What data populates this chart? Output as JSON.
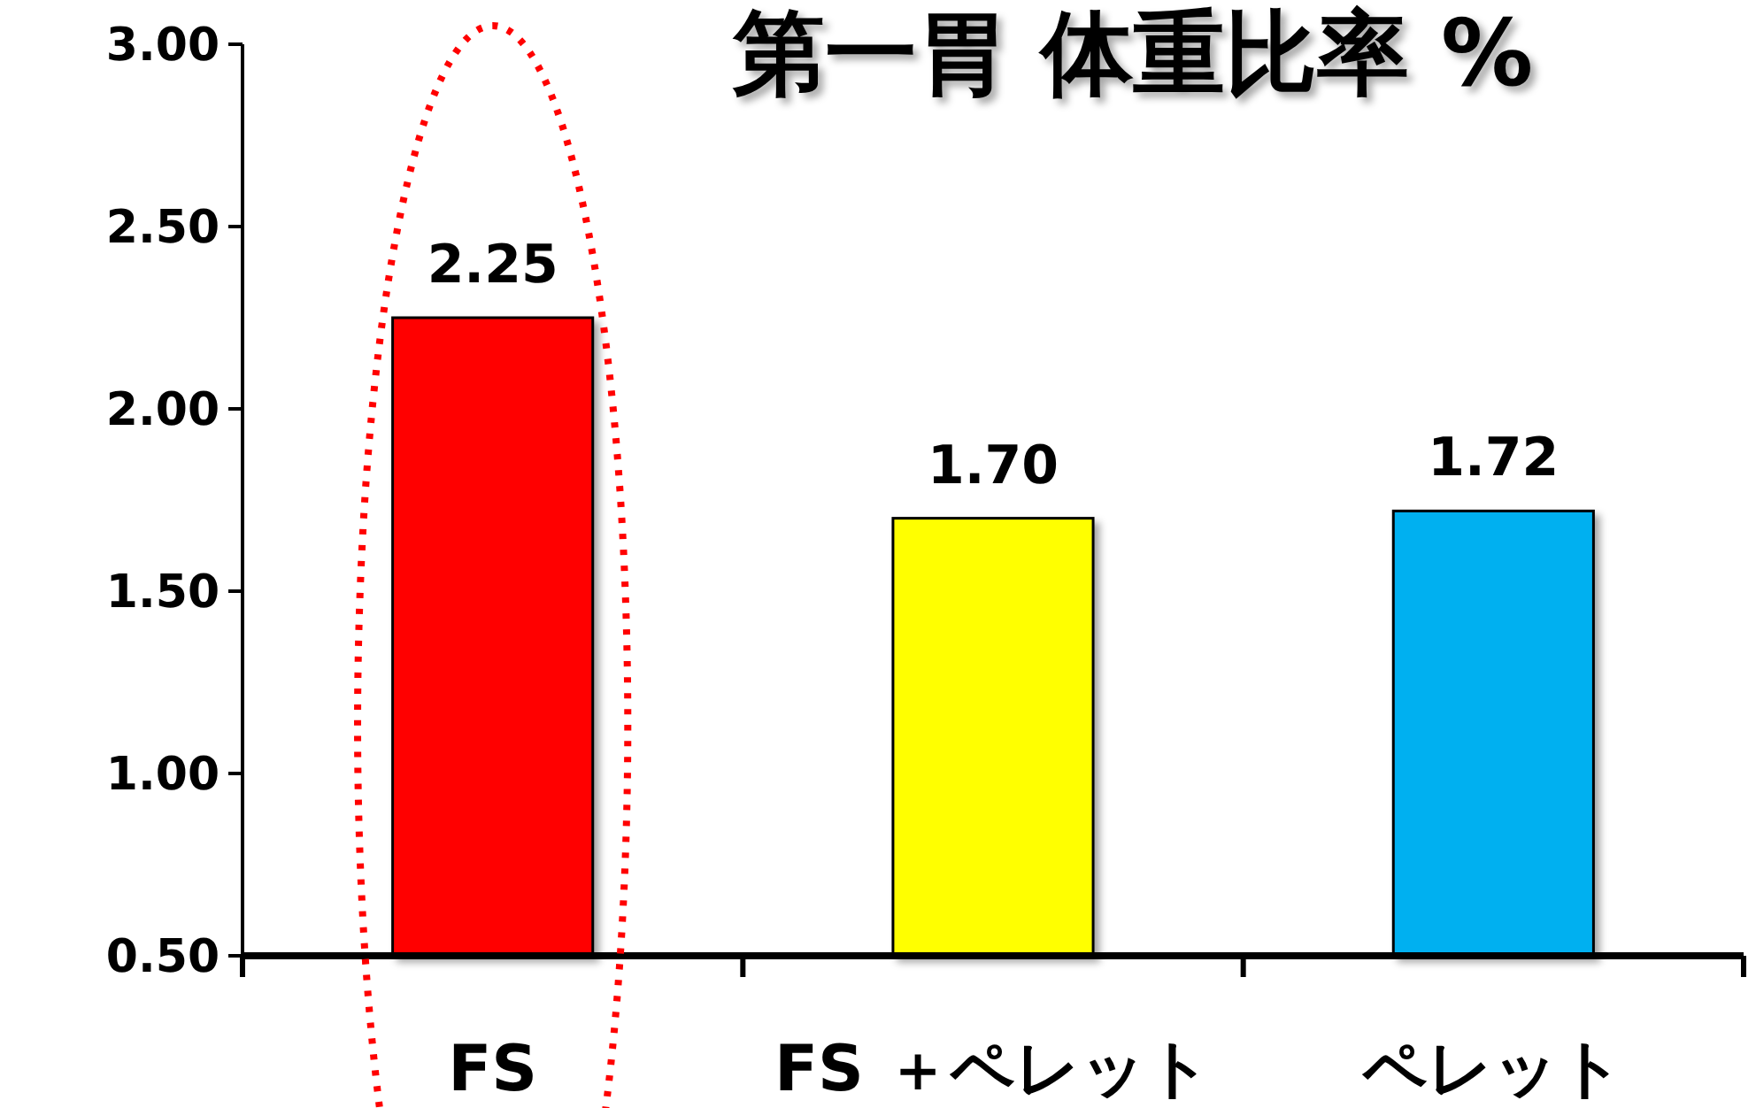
{
  "chart_data": {
    "type": "bar",
    "title": "第一胃 体重比率 %",
    "categories": [
      "FS",
      "FS ＋ペレット",
      "ペレット"
    ],
    "values": [
      2.25,
      1.7,
      1.72
    ],
    "colors": [
      "#ff0000",
      "#ffff00",
      "#00b0f0"
    ],
    "ylim": [
      0.5,
      3.0
    ],
    "yticks": [
      {
        "value": 0.5,
        "label": "0.50"
      },
      {
        "value": 1.0,
        "label": "1.00"
      },
      {
        "value": 1.5,
        "label": "1.50"
      },
      {
        "value": 2.0,
        "label": "2.00"
      },
      {
        "value": 2.5,
        "label": "2.50"
      },
      {
        "value": 3.0,
        "label": "3.00"
      }
    ],
    "value_labels": [
      "2.25",
      "1.70",
      "1.72"
    ],
    "grid": false
  }
}
